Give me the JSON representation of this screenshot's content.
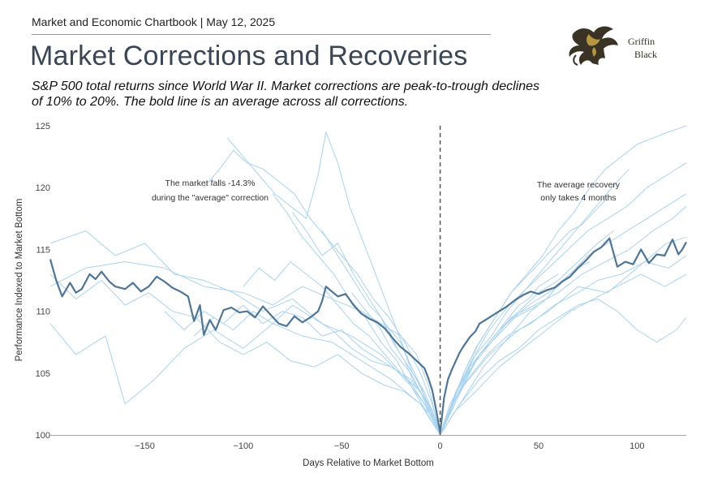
{
  "header": {
    "chartbook_line": "Market and Economic Chartbook | May 12, 2025",
    "title": "Market Corrections and Recoveries",
    "subtitle": "S&P 500 total returns since World War II. Market corrections are peak-to-trough declines of 10% to 20%. The bold line is an average across all corrections."
  },
  "logo": {
    "line1": "Griffin",
    "line2": "Black",
    "icon": "griffin-emblem-icon"
  },
  "colors": {
    "thin_lines": "#a9d3ee",
    "average_line": "#4f7597",
    "divider": "#555555"
  },
  "chart_data": {
    "type": "line",
    "title": "Market Corrections and Recoveries",
    "xlabel": "Days Relative to Market Bottom",
    "ylabel": "Performance Indexed to Market Bottom",
    "xlim": [
      -198,
      125
    ],
    "ylim": [
      100,
      125
    ],
    "x_ticks": [
      -150,
      -100,
      -50,
      0,
      50,
      100
    ],
    "x_tick_labels": [
      "−150",
      "−100",
      "−50",
      "0",
      "50",
      "100"
    ],
    "y_ticks": [
      100,
      105,
      110,
      115,
      120,
      125
    ],
    "vertical_marker_x": 0,
    "grid": false,
    "annotations": [
      {
        "lines": [
          "The market falls -14.3%",
          "during the \"average\" correction"
        ]
      },
      {
        "lines": [
          "The average recovery",
          "only takes 4 months"
        ]
      }
    ],
    "average_series": {
      "name": "Average across all corrections",
      "x": [
        -198,
        -195,
        -192,
        -188,
        -185,
        -182,
        -178,
        -175,
        -172,
        -168,
        -165,
        -160,
        -156,
        -152,
        -148,
        -144,
        -140,
        -136,
        -132,
        -128,
        -125,
        -122,
        -120,
        -117,
        -114,
        -110,
        -106,
        -102,
        -98,
        -94,
        -90,
        -86,
        -82,
        -78,
        -74,
        -70,
        -66,
        -62,
        -60,
        -58,
        -55,
        -52,
        -48,
        -44,
        -40,
        -36,
        -32,
        -28,
        -24,
        -20,
        -16,
        -12,
        -8,
        -6,
        -4,
        -2,
        0,
        2,
        4,
        6,
        8,
        10,
        12,
        15,
        18,
        20,
        23,
        26,
        30,
        34,
        38,
        42,
        46,
        50,
        54,
        58,
        62,
        66,
        70,
        74,
        78,
        82,
        86,
        90,
        94,
        98,
        102,
        106,
        110,
        114,
        118,
        121,
        123,
        125
      ],
      "y": [
        114.2,
        112.5,
        111.2,
        112.3,
        111.5,
        111.8,
        113.0,
        112.6,
        113.2,
        112.4,
        112.0,
        111.8,
        112.3,
        111.6,
        112.0,
        112.8,
        112.4,
        111.9,
        111.6,
        111.2,
        109.2,
        110.5,
        108.1,
        109.3,
        108.5,
        110.1,
        110.3,
        109.9,
        110.0,
        109.5,
        110.4,
        109.7,
        109.0,
        108.8,
        109.6,
        109.1,
        109.5,
        110.0,
        110.8,
        112.0,
        111.6,
        111.2,
        111.4,
        110.5,
        109.8,
        109.4,
        109.1,
        108.6,
        107.8,
        107.1,
        106.6,
        106.0,
        105.4,
        104.6,
        103.6,
        102.0,
        100.2,
        103.0,
        104.5,
        105.3,
        106.0,
        106.7,
        107.2,
        107.9,
        108.4,
        109.0,
        109.3,
        109.6,
        110.0,
        110.4,
        110.9,
        111.3,
        111.6,
        111.4,
        111.7,
        111.9,
        112.4,
        112.8,
        113.5,
        114.1,
        114.8,
        115.2,
        115.9,
        113.6,
        114.0,
        113.8,
        115.0,
        113.9,
        114.6,
        114.5,
        115.8,
        114.6,
        115.0,
        115.6
      ]
    },
    "individual_series": [
      {
        "x": [
          -198,
          -180,
          -165,
          -150,
          -135,
          -120,
          -105,
          -90,
          -75,
          -60,
          -45,
          -30,
          -15,
          0,
          15,
          30,
          45,
          60,
          75,
          90,
          105,
          125
        ],
        "y": [
          115.5,
          116.5,
          114.5,
          115.5,
          113.0,
          112.5,
          111.5,
          110.0,
          111.0,
          109.0,
          108.0,
          106.5,
          104.0,
          100.0,
          105.5,
          108.5,
          110.5,
          112.0,
          114.5,
          116.0,
          117.5,
          119.5
        ]
      },
      {
        "x": [
          -198,
          -185,
          -170,
          -160,
          -145,
          -130,
          -115,
          -100,
          -85,
          -70,
          -55,
          -40,
          -25,
          -10,
          0,
          12,
          25,
          40,
          55,
          70,
          85,
          100,
          115,
          125
        ],
        "y": [
          109.0,
          106.5,
          108.0,
          102.5,
          104.5,
          107.0,
          108.5,
          107.0,
          109.0,
          108.0,
          107.5,
          106.0,
          104.5,
          102.5,
          100.0,
          104.0,
          106.5,
          108.5,
          110.0,
          112.0,
          111.5,
          113.5,
          115.5,
          116.0
        ]
      },
      {
        "x": [
          -120,
          -112,
          -105,
          -98,
          -90,
          -82,
          -74,
          -66,
          -58,
          -50,
          -42,
          -34,
          -26,
          -18,
          -10,
          -4,
          0,
          8,
          16,
          25,
          35,
          45,
          55,
          65,
          75,
          85,
          95,
          105,
          115,
          125
        ],
        "y": [
          120.0,
          121.5,
          123.0,
          122.0,
          121.5,
          120.5,
          119.5,
          117.5,
          116.0,
          114.5,
          113.0,
          111.0,
          109.5,
          107.5,
          105.0,
          102.5,
          100.0,
          103.5,
          106.0,
          108.5,
          110.5,
          112.0,
          113.5,
          115.0,
          116.5,
          117.5,
          118.5,
          120.0,
          121.0,
          122.0
        ]
      },
      {
        "x": [
          -108,
          -100,
          -92,
          -84,
          -76,
          -68,
          -62,
          -58,
          -52,
          -46,
          -40,
          -34,
          -28,
          -22,
          -16,
          -10,
          -5,
          0,
          6,
          12,
          20,
          28,
          36,
          44,
          52,
          60,
          68,
          76,
          84,
          92,
          100,
          108,
          116,
          125
        ],
        "y": [
          124.0,
          122.5,
          121.0,
          119.5,
          118.5,
          117.5,
          121.0,
          124.5,
          122.0,
          118.5,
          116.0,
          113.5,
          111.0,
          108.5,
          106.0,
          104.0,
          102.0,
          100.0,
          102.5,
          105.0,
          107.5,
          109.5,
          111.5,
          113.0,
          114.5,
          116.5,
          118.0,
          120.0,
          121.5,
          122.5,
          123.5,
          124.0,
          124.5,
          125.0
        ]
      },
      {
        "x": [
          -198,
          -180,
          -160,
          -140,
          -120,
          -100,
          -85,
          -70,
          -55,
          -40,
          -30,
          -20,
          -12,
          -6,
          0,
          8,
          16,
          26,
          36,
          48,
          60,
          72,
          84,
          96,
          108,
          118,
          125
        ],
        "y": [
          112.0,
          113.5,
          114.0,
          113.5,
          112.0,
          111.5,
          110.5,
          112.0,
          111.0,
          110.0,
          109.0,
          108.0,
          106.5,
          104.0,
          100.0,
          103.0,
          105.5,
          107.5,
          109.5,
          110.5,
          111.5,
          113.0,
          114.0,
          115.0,
          116.5,
          117.5,
          118.5
        ]
      },
      {
        "x": [
          -125,
          -115,
          -105,
          -95,
          -85,
          -75,
          -65,
          -55,
          -45,
          -35,
          -25,
          -15,
          -8,
          0,
          10,
          20,
          30,
          40,
          50,
          60,
          70,
          80,
          90,
          100,
          110,
          120,
          125
        ],
        "y": [
          108.0,
          109.5,
          108.5,
          110.0,
          109.0,
          110.5,
          109.5,
          108.5,
          107.0,
          106.0,
          105.5,
          104.5,
          103.0,
          100.0,
          102.5,
          104.5,
          106.0,
          107.0,
          108.5,
          109.5,
          110.5,
          111.0,
          110.0,
          108.5,
          107.5,
          108.5,
          109.5
        ]
      },
      {
        "x": [
          -198,
          -185,
          -172,
          -160,
          -148,
          -136,
          -124,
          -112,
          -100,
          -88,
          -76,
          -64,
          -52,
          -40,
          -28,
          -18,
          -10,
          -4,
          0,
          6,
          14,
          24,
          34,
          46,
          58,
          70,
          80,
          92,
          104,
          116,
          125
        ],
        "y": [
          113.0,
          111.0,
          112.5,
          110.5,
          111.5,
          110.0,
          109.5,
          107.5,
          106.5,
          107.5,
          106.0,
          105.5,
          106.5,
          105.0,
          104.0,
          103.5,
          102.5,
          101.5,
          100.0,
          102.5,
          104.5,
          106.5,
          108.0,
          109.0,
          110.5,
          111.5,
          112.5,
          113.0,
          114.0,
          113.5,
          114.5
        ]
      },
      {
        "x": [
          -75,
          -68,
          -60,
          -52,
          -44,
          -36,
          -28,
          -20,
          -14,
          -8,
          -3,
          0,
          5,
          10,
          18,
          26,
          34,
          42,
          50,
          58,
          66,
          74,
          82,
          90,
          96
        ],
        "y": [
          118.0,
          116.5,
          114.5,
          115.5,
          113.0,
          111.0,
          109.0,
          107.5,
          105.0,
          103.5,
          101.5,
          100.0,
          102.0,
          104.0,
          106.5,
          108.0,
          110.0,
          111.5,
          113.0,
          114.5,
          116.0,
          117.5,
          119.0,
          120.5,
          121.5
        ]
      },
      {
        "x": [
          -100,
          -92,
          -84,
          -76,
          -68,
          -60,
          -52,
          -44,
          -36,
          -28,
          -20,
          -14,
          -8,
          -3,
          0,
          5,
          12,
          20,
          30,
          40,
          50,
          60,
          70,
          80,
          88
        ],
        "y": [
          112.0,
          113.5,
          112.5,
          114.0,
          113.0,
          112.0,
          110.5,
          109.0,
          108.0,
          106.5,
          105.0,
          104.0,
          102.5,
          101.5,
          100.0,
          102.5,
          104.5,
          106.5,
          108.5,
          110.0,
          111.5,
          112.5,
          114.0,
          115.5,
          116.5
        ]
      },
      {
        "x": [
          -60,
          -54,
          -48,
          -42,
          -36,
          -30,
          -24,
          -18,
          -12,
          -6,
          0,
          6,
          12,
          18,
          24,
          30,
          36,
          42,
          48,
          54,
          60,
          66,
          72,
          78,
          84
        ],
        "y": [
          116.5,
          115.0,
          113.5,
          112.0,
          110.5,
          109.5,
          107.5,
          106.0,
          104.5,
          102.5,
          100.0,
          102.5,
          105.0,
          107.0,
          108.5,
          110.0,
          111.5,
          112.5,
          113.5,
          114.5,
          115.5,
          116.5,
          117.0,
          118.0,
          119.0
        ]
      },
      {
        "x": [
          -45,
          -40,
          -35,
          -30,
          -25,
          -20,
          -15,
          -10,
          -5,
          0,
          5,
          10,
          15,
          20,
          25,
          30,
          35,
          40,
          45,
          50,
          55,
          60
        ],
        "y": [
          111.5,
          110.5,
          109.5,
          108.5,
          107.0,
          106.0,
          105.0,
          103.5,
          102.0,
          100.0,
          102.0,
          103.5,
          105.0,
          106.5,
          107.5,
          108.5,
          109.5,
          110.5,
          111.0,
          112.0,
          112.5,
          113.0
        ]
      },
      {
        "x": [
          -30,
          -26,
          -22,
          -18,
          -14,
          -10,
          -6,
          -3,
          0,
          4,
          8,
          12,
          16,
          20,
          26,
          32,
          38,
          44,
          50
        ],
        "y": [
          109.5,
          108.5,
          107.0,
          106.0,
          104.5,
          103.5,
          102.0,
          101.0,
          100.0,
          101.5,
          103.0,
          104.0,
          105.5,
          106.5,
          107.5,
          108.5,
          109.5,
          110.0,
          110.5
        ]
      },
      {
        "x": [
          -140,
          -130,
          -120,
          -110,
          -100,
          -90,
          -80,
          -70,
          -60,
          -50,
          -40,
          -30,
          -20,
          -10,
          -4,
          0,
          8,
          18,
          30,
          42,
          54,
          66,
          78,
          90,
          102,
          114,
          125
        ],
        "y": [
          110.0,
          108.5,
          110.0,
          109.0,
          110.5,
          109.0,
          110.0,
          109.5,
          108.0,
          108.5,
          107.0,
          106.0,
          105.0,
          103.5,
          102.0,
          100.0,
          102.0,
          103.5,
          105.5,
          107.0,
          108.5,
          110.0,
          111.0,
          112.0,
          113.0,
          112.0,
          113.0
        ]
      },
      {
        "x": [
          -85,
          -78,
          -70,
          -62,
          -54,
          -46,
          -38,
          -30,
          -22,
          -15,
          -8,
          -3,
          0,
          6,
          14,
          22,
          30,
          38,
          46,
          54,
          62,
          70,
          76
        ],
        "y": [
          119.5,
          118.0,
          116.0,
          114.5,
          113.0,
          111.0,
          109.5,
          107.5,
          106.0,
          104.0,
          102.5,
          101.0,
          100.0,
          101.5,
          103.5,
          105.5,
          107.0,
          108.5,
          110.0,
          111.0,
          112.5,
          113.5,
          114.0
        ]
      }
    ]
  }
}
